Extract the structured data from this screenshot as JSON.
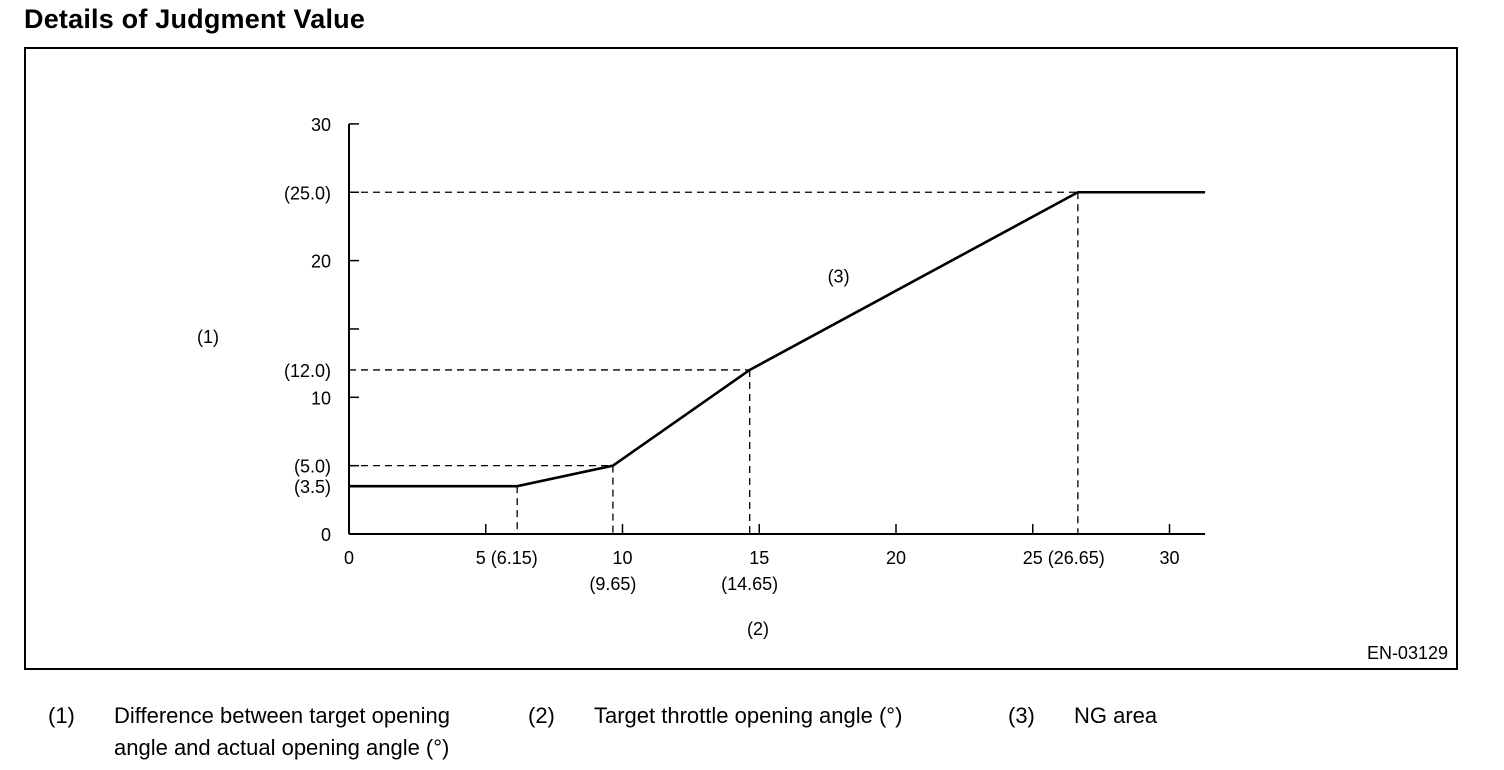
{
  "title": "Details of Judgment Value",
  "figure_code": "EN-03129",
  "chart_data": {
    "type": "line",
    "ylabel": "(1)",
    "xlabel": "(2)",
    "xlim": [
      0,
      31.3
    ],
    "ylim": [
      0,
      30
    ],
    "x_ticks": [
      0,
      5,
      10,
      15,
      20,
      25,
      30
    ],
    "x_tick_labels": [
      {
        "x": 0,
        "text": "0"
      },
      {
        "x": 5,
        "text": "5 (6.15)"
      },
      {
        "x": 10,
        "text": "10"
      },
      {
        "x": 15,
        "text": "15"
      },
      {
        "x": 20,
        "text": "20"
      },
      {
        "x": 25,
        "text": "25 (26.65)"
      },
      {
        "x": 30,
        "text": "30"
      }
    ],
    "x_sublabels": [
      {
        "x": 9.65,
        "text": "(9.65)"
      },
      {
        "x": 14.65,
        "text": "(14.65)"
      }
    ],
    "y_ticks": [
      0,
      5,
      10,
      15,
      20,
      25,
      30
    ],
    "y_tick_labels": [
      {
        "y": 0,
        "text": "0"
      },
      {
        "y": 10,
        "text": "10"
      },
      {
        "y": 20,
        "text": "20"
      },
      {
        "y": 30,
        "text": "30"
      }
    ],
    "y_ref_labels": [
      {
        "y": 3.5,
        "text": "(3.5)"
      },
      {
        "y": 5.0,
        "text": "(5.0)"
      },
      {
        "y": 12.0,
        "text": "(12.0)"
      },
      {
        "y": 25.0,
        "text": "(25.0)"
      }
    ],
    "series": [
      {
        "x": [
          0,
          6.15,
          9.65,
          14.65,
          26.65,
          31.3
        ],
        "y": [
          3.5,
          3.5,
          5.0,
          12.0,
          25.0,
          25.0
        ]
      }
    ],
    "reference_points": [
      {
        "x": 6.15,
        "y": 3.5
      },
      {
        "x": 9.65,
        "y": 5.0
      },
      {
        "x": 14.65,
        "y": 12.0
      },
      {
        "x": 26.65,
        "y": 25.0
      }
    ],
    "annotations": [
      {
        "x": 17.9,
        "y": 18.4,
        "text": "(3)"
      }
    ],
    "grid": false
  },
  "legend": [
    {
      "num": "(1)",
      "lines": [
        "Difference between target opening",
        "angle and actual opening angle (°)"
      ]
    },
    {
      "num": "(2)",
      "lines": [
        "Target throttle opening angle (°)"
      ]
    },
    {
      "num": "(3)",
      "lines": [
        "NG area"
      ]
    }
  ]
}
